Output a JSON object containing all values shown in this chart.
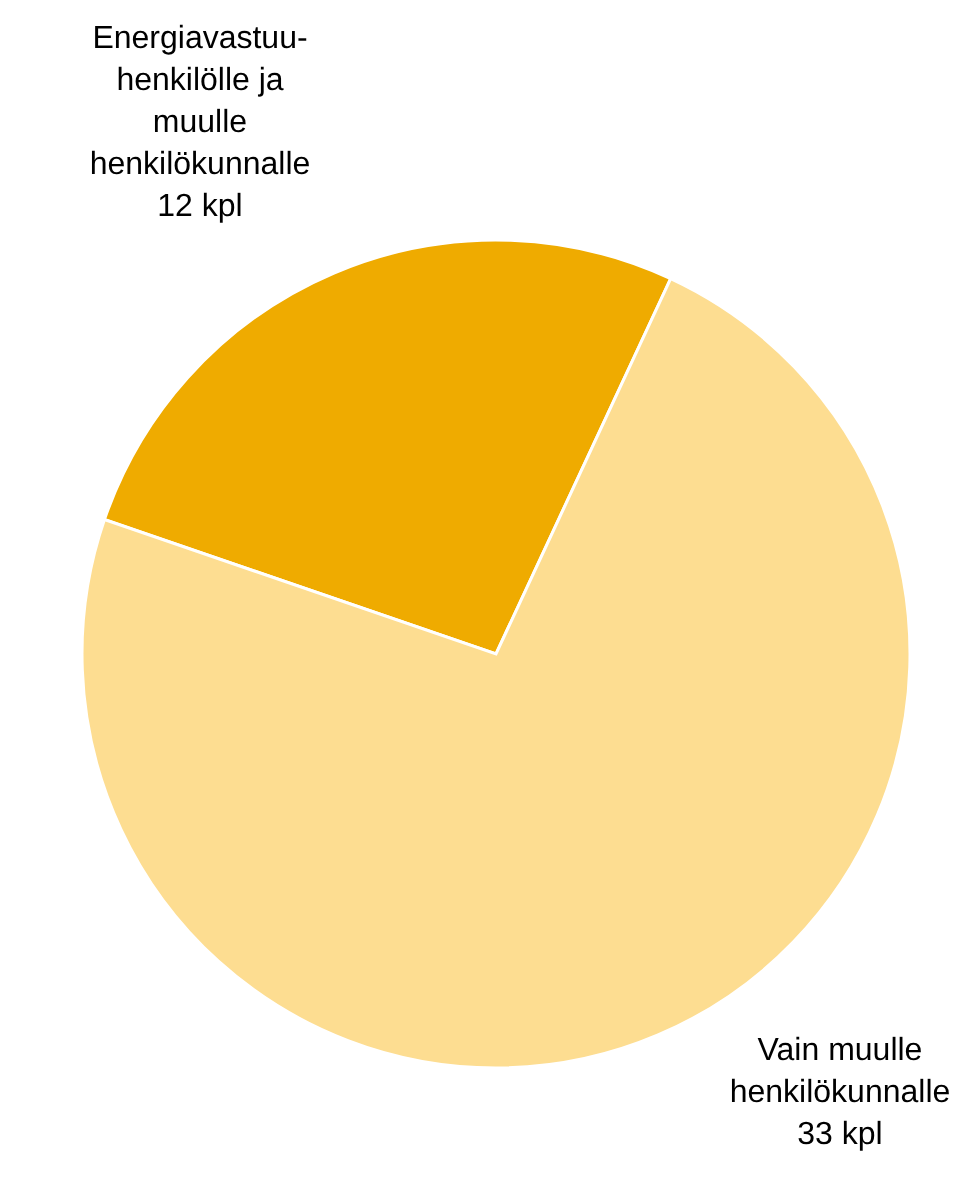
{
  "chart_data": {
    "type": "pie",
    "categories": [
      "Energiavastuu-henkilölle ja muulle henkilökunnalle",
      "Vain muulle henkilökunnalle"
    ],
    "values": [
      12,
      33
    ],
    "colors": [
      "#efab00",
      "#fddd91"
    ],
    "value_labels": [
      "12 kpl",
      "33 kpl"
    ]
  }
}
